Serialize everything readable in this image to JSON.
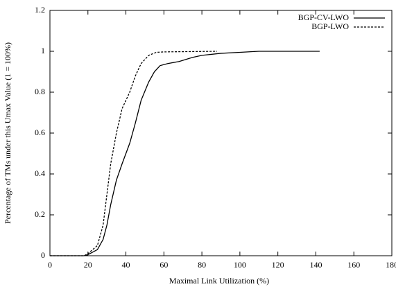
{
  "chart_data": {
    "type": "line",
    "xlabel": "Maximal Link Utilization (%)",
    "ylabel": "Percentage of TMs under this Umax Value (1 = 100%)",
    "xlim": [
      0,
      180
    ],
    "xticks": [
      0,
      20,
      40,
      60,
      80,
      100,
      120,
      140,
      160,
      180
    ],
    "ylim": [
      0,
      1.2
    ],
    "yticks": [
      0,
      0.2,
      0.4,
      0.6,
      0.8,
      1,
      1.2
    ],
    "legend": "top-right",
    "series": [
      {
        "name": "BGP-CV-LWO",
        "color": "#000000",
        "dash": false,
        "x": [
          0,
          18,
          20,
          25,
          28,
          30,
          32,
          35,
          38,
          42,
          45,
          48,
          52,
          55,
          58,
          62,
          68,
          75,
          80,
          90,
          100,
          110,
          142
        ],
        "values": [
          0,
          0,
          0.005,
          0.03,
          0.08,
          0.15,
          0.25,
          0.37,
          0.45,
          0.55,
          0.65,
          0.76,
          0.85,
          0.9,
          0.93,
          0.94,
          0.95,
          0.97,
          0.98,
          0.99,
          0.995,
          1,
          1
        ]
      },
      {
        "name": "BGP-LWO",
        "color": "#000000",
        "dash": true,
        "x": [
          0,
          18,
          20,
          25,
          28,
          30,
          32,
          35,
          38,
          42,
          45,
          48,
          52,
          56,
          60,
          88
        ],
        "values": [
          0,
          0,
          0.01,
          0.05,
          0.15,
          0.3,
          0.45,
          0.6,
          0.72,
          0.8,
          0.88,
          0.94,
          0.98,
          0.995,
          0.997,
          1
        ]
      }
    ]
  }
}
